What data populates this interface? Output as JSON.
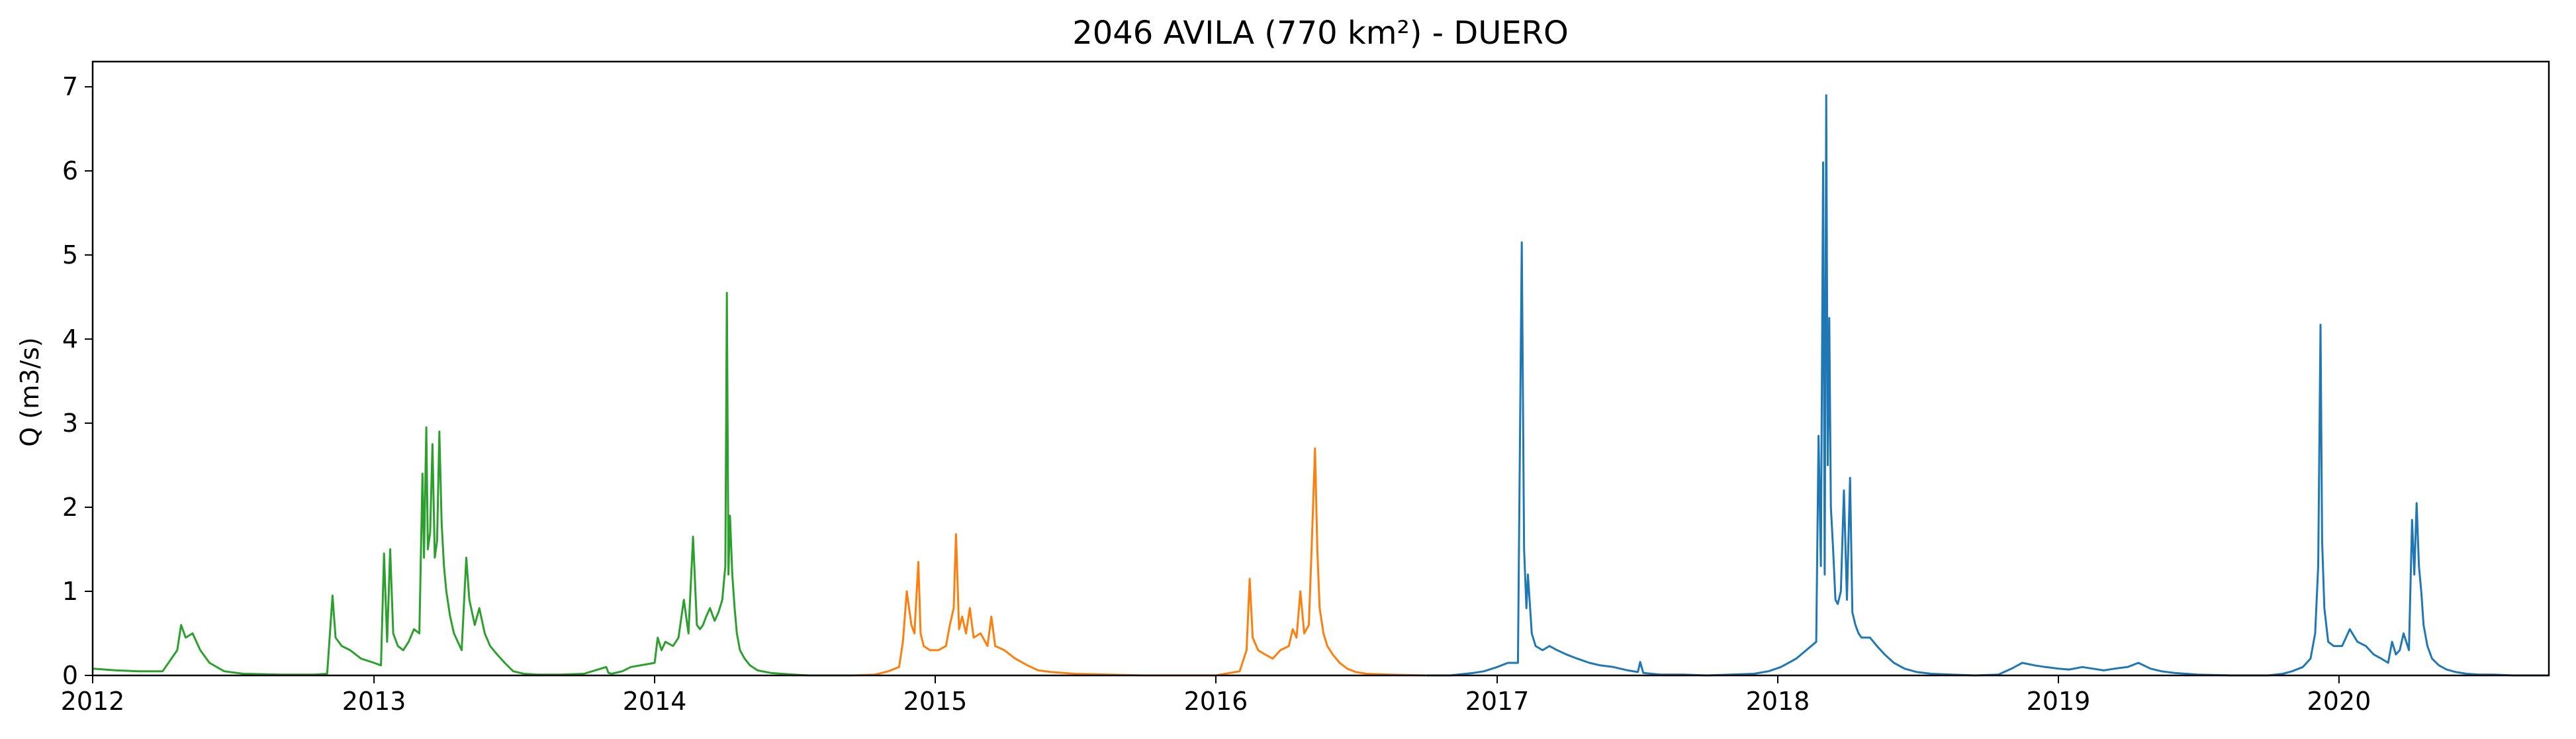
{
  "chart_data": {
    "type": "line",
    "title": "2046 AVILA (770 km²) - DUERO",
    "xlabel": "",
    "ylabel": "Q (m3/s)",
    "xlim": [
      "2012-01-01",
      "2020-09-30"
    ],
    "ylim": [
      0,
      7.3
    ],
    "x_ticks": [
      "2012",
      "2013",
      "2014",
      "2015",
      "2016",
      "2017",
      "2018",
      "2019",
      "2020"
    ],
    "y_ticks": [
      0,
      1,
      2,
      3,
      4,
      5,
      6,
      7
    ],
    "grid": false,
    "series": [
      {
        "color": "#2ca02c",
        "x": [
          "2012-01-01",
          "2012-02-01",
          "2012-03-01",
          "2012-04-01",
          "2012-04-20",
          "2012-04-25",
          "2012-05-01",
          "2012-05-10",
          "2012-05-20",
          "2012-06-01",
          "2012-06-20",
          "2012-07-15",
          "2012-09-01",
          "2012-10-15",
          "2012-11-01",
          "2012-11-08",
          "2012-11-12",
          "2012-11-20",
          "2012-12-01",
          "2012-12-15",
          "2013-01-01",
          "2013-01-10",
          "2013-01-14",
          "2013-01-18",
          "2013-01-22",
          "2013-01-26",
          "2013-02-01",
          "2013-02-08",
          "2013-02-15",
          "2013-02-22",
          "2013-03-01",
          "2013-03-05",
          "2013-03-07",
          "2013-03-10",
          "2013-03-12",
          "2013-03-15",
          "2013-03-18",
          "2013-03-21",
          "2013-03-24",
          "2013-03-27",
          "2013-03-30",
          "2013-04-02",
          "2013-04-05",
          "2013-04-10",
          "2013-04-15",
          "2013-04-20",
          "2013-04-25",
          "2013-05-01",
          "2013-05-05",
          "2013-05-12",
          "2013-05-18",
          "2013-05-25",
          "2013-06-01",
          "2013-06-10",
          "2013-06-20",
          "2013-07-01",
          "2013-07-15",
          "2013-08-01",
          "2013-09-01",
          "2013-10-01",
          "2013-10-30",
          "2013-11-02",
          "2013-11-06",
          "2013-11-20",
          "2013-12-01",
          "2014-01-01",
          "2014-01-05",
          "2014-01-10",
          "2014-01-15",
          "2014-01-25",
          "2014-02-01",
          "2014-02-08",
          "2014-02-14",
          "2014-02-20",
          "2014-02-25",
          "2014-03-01",
          "2014-03-05",
          "2014-03-09",
          "2014-03-14",
          "2014-03-20",
          "2014-03-25",
          "2014-03-30",
          "2014-04-03",
          "2014-04-05",
          "2014-04-07",
          "2014-04-09",
          "2014-04-12",
          "2014-04-15",
          "2014-04-18",
          "2014-04-22",
          "2014-04-28",
          "2014-05-05",
          "2014-05-15",
          "2014-06-01",
          "2014-06-15",
          "2014-07-01",
          "2014-07-20",
          "2014-08-15",
          "2014-09-15"
        ],
        "y": [
          0.08,
          0.06,
          0.05,
          0.05,
          0.3,
          0.6,
          0.45,
          0.5,
          0.3,
          0.15,
          0.05,
          0.02,
          0.01,
          0.01,
          0.02,
          0.95,
          0.45,
          0.35,
          0.3,
          0.2,
          0.15,
          0.12,
          1.45,
          0.4,
          1.5,
          0.5,
          0.35,
          0.3,
          0.4,
          0.55,
          0.5,
          2.4,
          1.4,
          2.95,
          1.5,
          1.7,
          2.75,
          1.4,
          1.6,
          2.9,
          1.8,
          1.3,
          1.0,
          0.7,
          0.5,
          0.4,
          0.3,
          1.4,
          0.9,
          0.6,
          0.8,
          0.5,
          0.35,
          0.25,
          0.15,
          0.05,
          0.02,
          0.01,
          0.01,
          0.02,
          0.1,
          0.03,
          0.02,
          0.05,
          0.1,
          0.15,
          0.45,
          0.3,
          0.4,
          0.35,
          0.45,
          0.9,
          0.5,
          1.65,
          0.6,
          0.55,
          0.6,
          0.7,
          0.8,
          0.65,
          0.75,
          0.9,
          1.3,
          4.55,
          1.2,
          1.9,
          1.2,
          0.8,
          0.5,
          0.3,
          0.2,
          0.12,
          0.06,
          0.03,
          0.02,
          0.01,
          0.0,
          0.0,
          0.0
        ]
      },
      {
        "color": "#ff7f0e",
        "x": [
          "2014-09-15",
          "2014-10-15",
          "2014-11-01",
          "2014-11-15",
          "2014-11-20",
          "2014-11-25",
          "2014-12-01",
          "2014-12-05",
          "2014-12-10",
          "2014-12-13",
          "2014-12-17",
          "2014-12-25",
          "2015-01-05",
          "2015-01-15",
          "2015-01-20",
          "2015-01-25",
          "2015-01-28",
          "2015-02-01",
          "2015-02-05",
          "2015-02-10",
          "2015-02-15",
          "2015-02-20",
          "2015-03-01",
          "2015-03-10",
          "2015-03-15",
          "2015-03-20",
          "2015-04-01",
          "2015-04-15",
          "2015-05-01",
          "2015-05-15",
          "2015-06-01",
          "2015-07-01",
          "2015-08-15",
          "2015-10-01",
          "2015-11-15",
          "2016-01-01",
          "2016-02-01",
          "2016-02-10",
          "2016-02-14",
          "2016-02-18",
          "2016-02-25",
          "2016-03-05",
          "2016-03-15",
          "2016-03-25",
          "2016-04-05",
          "2016-04-10",
          "2016-04-15",
          "2016-04-20",
          "2016-04-25",
          "2016-05-01",
          "2016-05-05",
          "2016-05-09",
          "2016-05-12",
          "2016-05-15",
          "2016-05-20",
          "2016-05-25",
          "2016-06-01",
          "2016-06-10",
          "2016-06-20",
          "2016-07-01",
          "2016-07-15",
          "2016-08-15",
          "2016-09-30"
        ],
        "y": [
          0.0,
          0.01,
          0.05,
          0.1,
          0.4,
          1.0,
          0.6,
          0.5,
          1.35,
          0.5,
          0.35,
          0.3,
          0.3,
          0.35,
          0.6,
          0.8,
          1.68,
          0.55,
          0.7,
          0.5,
          0.8,
          0.45,
          0.5,
          0.35,
          0.7,
          0.35,
          0.3,
          0.2,
          0.12,
          0.06,
          0.04,
          0.02,
          0.01,
          0.0,
          0.0,
          0.0,
          0.05,
          0.3,
          1.15,
          0.45,
          0.3,
          0.25,
          0.2,
          0.3,
          0.35,
          0.55,
          0.45,
          1.0,
          0.5,
          0.6,
          1.6,
          2.7,
          1.5,
          0.8,
          0.5,
          0.35,
          0.25,
          0.15,
          0.08,
          0.04,
          0.02,
          0.01,
          0.0
        ]
      },
      {
        "color": "#1f77b4",
        "x": [
          "2016-10-01",
          "2016-11-01",
          "2016-12-01",
          "2016-12-15",
          "2017-01-01",
          "2017-01-15",
          "2017-01-28",
          "2017-02-02",
          "2017-02-05",
          "2017-02-08",
          "2017-02-10",
          "2017-02-15",
          "2017-02-20",
          "2017-03-01",
          "2017-03-10",
          "2017-03-20",
          "2017-04-01",
          "2017-04-15",
          "2017-05-01",
          "2017-05-15",
          "2017-06-01",
          "2017-06-20",
          "2017-07-03",
          "2017-07-06",
          "2017-07-10",
          "2017-08-01",
          "2017-09-01",
          "2017-10-01",
          "2017-11-01",
          "2017-12-01",
          "2017-12-20",
          "2018-01-05",
          "2018-01-15",
          "2018-01-25",
          "2018-02-20",
          "2018-02-23",
          "2018-02-26",
          "2018-03-01",
          "2018-03-03",
          "2018-03-05",
          "2018-03-07",
          "2018-03-09",
          "2018-03-11",
          "2018-03-14",
          "2018-03-17",
          "2018-03-20",
          "2018-03-24",
          "2018-03-28",
          "2018-04-01",
          "2018-04-05",
          "2018-04-08",
          "2018-04-12",
          "2018-04-16",
          "2018-04-20",
          "2018-05-01",
          "2018-05-10",
          "2018-05-20",
          "2018-06-01",
          "2018-06-15",
          "2018-07-01",
          "2018-07-20",
          "2018-08-15",
          "2018-09-15",
          "2018-10-15",
          "2018-11-01",
          "2018-11-15",
          "2018-12-01",
          "2018-12-15",
          "2019-01-01",
          "2019-01-15",
          "2019-02-01",
          "2019-02-15",
          "2019-03-01",
          "2019-03-15",
          "2019-04-01",
          "2019-04-15",
          "2019-05-01",
          "2019-05-15",
          "2019-06-01",
          "2019-07-01",
          "2019-08-15",
          "2019-10-01",
          "2019-10-20",
          "2019-11-01",
          "2019-11-15",
          "2019-11-25",
          "2019-12-01",
          "2019-12-05",
          "2019-12-08",
          "2019-12-10",
          "2019-12-13",
          "2019-12-18",
          "2019-12-25",
          "2020-01-05",
          "2020-01-15",
          "2020-01-25",
          "2020-02-05",
          "2020-02-15",
          "2020-02-25",
          "2020-03-05",
          "2020-03-10",
          "2020-03-15",
          "2020-03-20",
          "2020-03-25",
          "2020-04-01",
          "2020-04-05",
          "2020-04-08",
          "2020-04-11",
          "2020-04-14",
          "2020-04-17",
          "2020-04-20",
          "2020-04-25",
          "2020-05-01",
          "2020-05-10",
          "2020-05-20",
          "2020-06-01",
          "2020-06-15",
          "2020-07-01",
          "2020-07-20",
          "2020-08-15",
          "2020-09-30"
        ],
        "y": [
          0.0,
          0.0,
          0.03,
          0.05,
          0.1,
          0.15,
          0.15,
          5.15,
          1.5,
          0.8,
          1.2,
          0.5,
          0.35,
          0.3,
          0.35,
          0.3,
          0.25,
          0.2,
          0.15,
          0.12,
          0.1,
          0.06,
          0.04,
          0.16,
          0.03,
          0.01,
          0.01,
          0.0,
          0.01,
          0.02,
          0.05,
          0.1,
          0.15,
          0.2,
          0.4,
          2.85,
          1.3,
          6.1,
          1.2,
          6.9,
          2.5,
          4.25,
          2.0,
          1.5,
          0.9,
          0.85,
          1.0,
          2.2,
          0.9,
          2.35,
          0.75,
          0.6,
          0.5,
          0.45,
          0.45,
          0.35,
          0.25,
          0.15,
          0.08,
          0.04,
          0.02,
          0.01,
          0.0,
          0.01,
          0.08,
          0.15,
          0.12,
          0.1,
          0.08,
          0.07,
          0.1,
          0.08,
          0.06,
          0.08,
          0.1,
          0.15,
          0.08,
          0.05,
          0.03,
          0.01,
          0.0,
          0.0,
          0.02,
          0.05,
          0.1,
          0.2,
          0.5,
          1.3,
          4.17,
          1.6,
          0.8,
          0.4,
          0.35,
          0.35,
          0.55,
          0.4,
          0.35,
          0.25,
          0.2,
          0.15,
          0.4,
          0.25,
          0.3,
          0.5,
          0.3,
          1.85,
          1.2,
          2.05,
          1.3,
          1.0,
          0.6,
          0.35,
          0.2,
          0.12,
          0.07,
          0.04,
          0.02,
          0.01,
          0.01,
          0.0,
          0.0
        ]
      }
    ]
  }
}
